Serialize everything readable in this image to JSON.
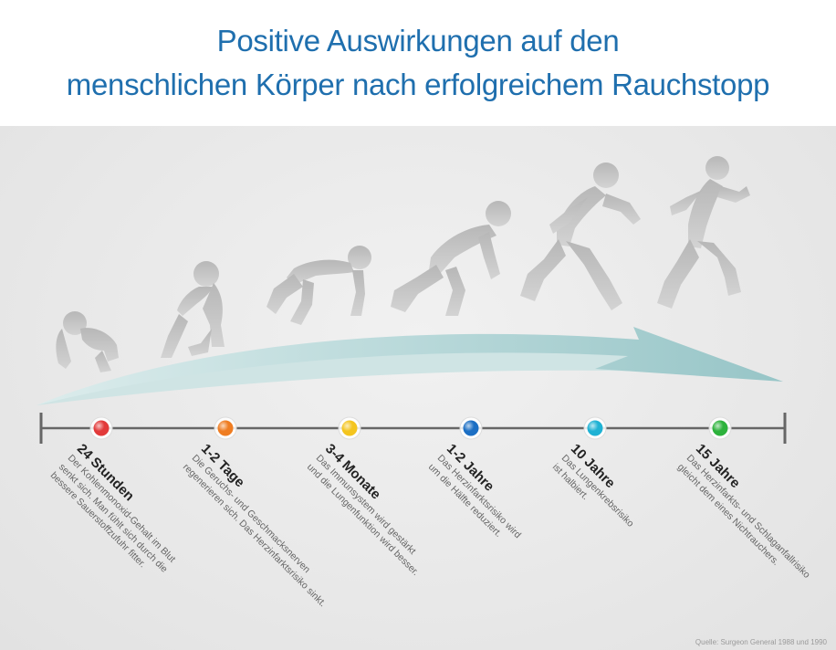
{
  "title": {
    "line1": "Positive Auswirkungen auf den",
    "line2": "menschlichen Körper nach erfolgreichem Rauchstopp"
  },
  "milestones": [
    {
      "label": "24 Stunden",
      "color": "#e23a3a",
      "desc1": "Der Kohlenmonoxid-Gehalt im Blut",
      "desc2": "senkt sich. Man fühlt sich durch die",
      "desc3": "bessere Sauerstoffzufuhr fitter."
    },
    {
      "label": "1-2 Tage",
      "color": "#ef7d22",
      "desc1": "Die Geruchs- und Geschmacksnerven",
      "desc2": "regenerieren sich. Das Herzinfarktsrisiko sinkt.",
      "desc3": ""
    },
    {
      "label": "3-4 Monate",
      "color": "#f4c51f",
      "desc1": "Das Immunsystem wird gestärkt",
      "desc2": "und die Lungenfunktion wird besser.",
      "desc3": ""
    },
    {
      "label": "1-2 Jahre",
      "color": "#1c6fc4",
      "desc1": "Das Herzinfarktsrisiko wird",
      "desc2": "um die Hälfte reduziert.",
      "desc3": ""
    },
    {
      "label": "10 Jahre",
      "color": "#1fb2d4",
      "desc1": "Das Lungenkrebsrisiko",
      "desc2": "ist halbiert.",
      "desc3": ""
    },
    {
      "label": "15 Jahre",
      "color": "#2db23c",
      "desc1": "Das Herzinfarkts- und Schlaganfallrisiko",
      "desc2": "gleicht dem eines Nichtrauchers.",
      "desc3": ""
    }
  ],
  "figures": [
    "crouching-figure",
    "kneeling-figure",
    "starting-block-figure",
    "rising-figure",
    "striding-figure",
    "running-figure"
  ],
  "source": "Quelle:  Surgeon General 1988 und 1990",
  "colors": {
    "title": "#1f6fae",
    "arrow": "#a8cfd0",
    "timeline": "#666666",
    "figure": "#bdbdbd"
  }
}
